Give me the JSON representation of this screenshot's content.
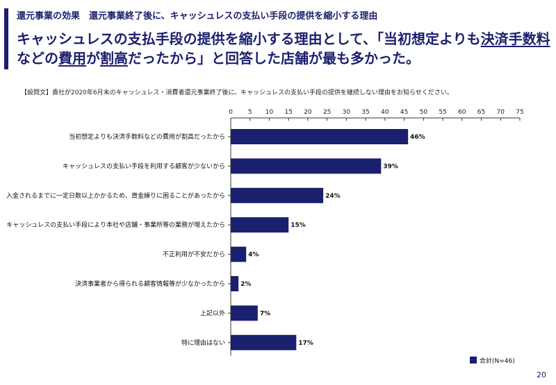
{
  "header": {
    "subtitle_main": "還元事業の効果",
    "subtitle_detail": "還元事業終了後に、キャッシュレスの支払い手段の提供を縮小する理由",
    "headline_parts": [
      {
        "text": "キャッシュレスの支払手段の提供を縮小する理由として、「当初想定よりも",
        "u": false
      },
      {
        "text": "決済手数料",
        "u": true
      },
      {
        "text": "などの",
        "u": false
      },
      {
        "text": "費用",
        "u": true
      },
      {
        "text": "が",
        "u": false
      },
      {
        "text": "割高",
        "u": true
      },
      {
        "text": "だったから」と回答した店舗が最も多かった。",
        "u": false
      }
    ],
    "question": "【設問文】貴社が2020年6月末のキャッシュレス・消費者還元事業終了後に、キャッシュレスの支払い手段の提供を継続しない理由をお知らせください。"
  },
  "chart_data": {
    "type": "bar",
    "orientation": "horizontal",
    "categories": [
      "当初想定よりも決済手数料などの費用が割高だったから",
      "キャッシュレスの支払い手段を利用する顧客が少ないから",
      "入金されるまでに一定日数以上かかるため、資金繰りに困ることがあったから",
      "キャッシュレスの支払い手段により本社や店舗・事業所等の業務が増えたから",
      "不正利用が不安だから",
      "決済事業者から得られる顧客情報等が少なかったから",
      "上記以外",
      "特に理由はない"
    ],
    "series": [
      {
        "name": "合計(N=46)",
        "values": [
          46,
          39,
          24,
          15,
          4,
          2,
          7,
          17
        ],
        "color": "#1a1f6e"
      }
    ],
    "data_labels": [
      "46%",
      "39%",
      "24%",
      "15%",
      "4%",
      "2%",
      "7%",
      "17%"
    ],
    "xlim": [
      0,
      75
    ],
    "xticks": [
      0,
      5,
      10,
      15,
      20,
      25,
      30,
      35,
      40,
      45,
      50,
      55,
      60,
      65,
      70,
      75
    ],
    "grid": false,
    "legend_position": "bottom-right"
  },
  "footer": {
    "page_number": "20"
  }
}
